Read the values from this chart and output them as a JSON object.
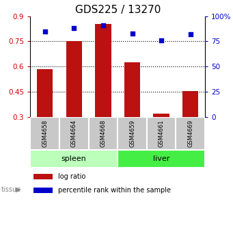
{
  "title": "GDS225 / 13270",
  "samples": [
    "GSM4658",
    "GSM4664",
    "GSM4668",
    "GSM4659",
    "GSM4661",
    "GSM4669"
  ],
  "log_ratio": [
    0.585,
    0.75,
    0.855,
    0.625,
    0.32,
    0.455
  ],
  "percentile_rank": [
    85,
    88,
    91,
    83,
    76,
    82
  ],
  "tissue_groups": [
    {
      "label": "spleen",
      "start": 0,
      "end": 3
    },
    {
      "label": "liver",
      "start": 3,
      "end": 6
    }
  ],
  "bar_color": "#bb1111",
  "dot_color": "#0000cc",
  "left_yticks": [
    0.3,
    0.45,
    0.6,
    0.75,
    0.9
  ],
  "right_yticks": [
    0,
    25,
    50,
    75,
    100
  ],
  "left_ylim": [
    0.3,
    0.9
  ],
  "right_ylim": [
    0,
    100
  ],
  "left_tick_color": "#cc0000",
  "right_tick_color": "#0000cc",
  "grid_values": [
    0.45,
    0.6,
    0.75
  ],
  "title_fontsize": 11,
  "tick_fontsize": 7.5,
  "sample_row_color": "#c8c8c8",
  "spleen_color": "#bbffbb",
  "liver_color": "#44ee44",
  "legend_labels": [
    "log ratio",
    "percentile rank within the sample"
  ],
  "legend_colors": [
    "#bb1111",
    "#0000cc"
  ],
  "tissue_label": "tissue",
  "tissue_label_color": "#888888"
}
